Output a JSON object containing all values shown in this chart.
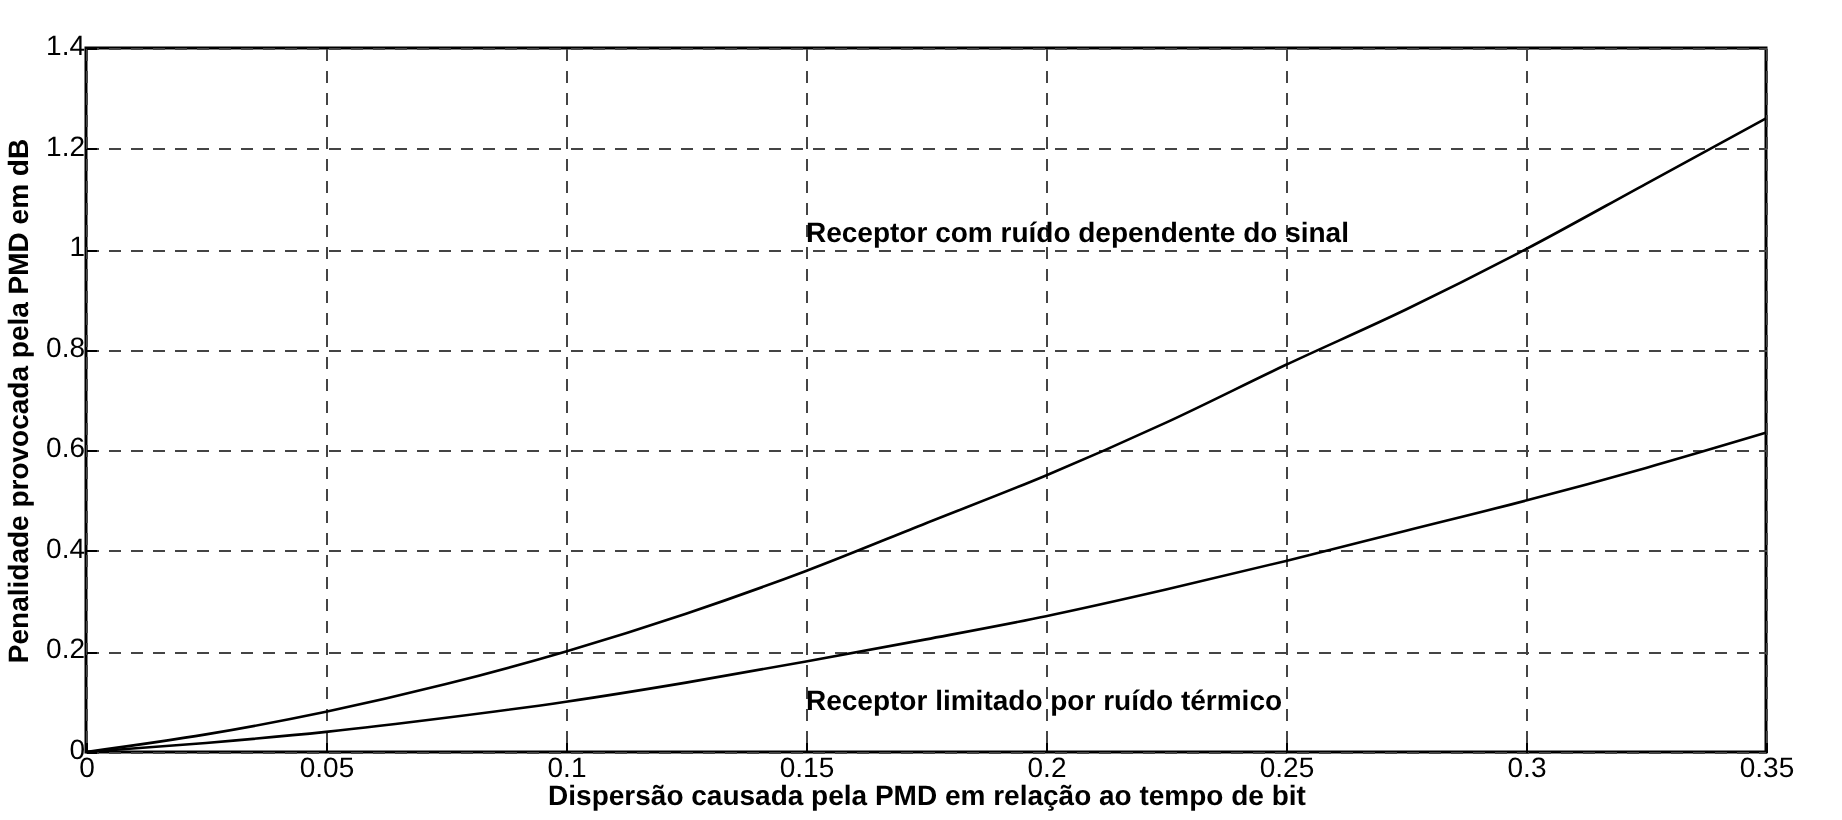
{
  "chart_data": {
    "type": "line",
    "xlabel": "Dispersão causada pela PMD em relação ao tempo de bit",
    "ylabel": "Penalidade provocada pela PMD em dB",
    "x": [
      0,
      0.025,
      0.05,
      0.075,
      0.1,
      0.125,
      0.15,
      0.175,
      0.2,
      0.225,
      0.25,
      0.275,
      0.3,
      0.325,
      0.35
    ],
    "series": [
      {
        "name": "Receptor com ruído dependente do sinal",
        "color": "#000000",
        "values": [
          0,
          0.035,
          0.08,
          0.135,
          0.2,
          0.275,
          0.36,
          0.455,
          0.55,
          0.655,
          0.77,
          0.88,
          1.0,
          1.13,
          1.26
        ]
      },
      {
        "name": "Receptor limitado por ruído térmico",
        "color": "#000000",
        "values": [
          0,
          0.018,
          0.04,
          0.068,
          0.1,
          0.138,
          0.18,
          0.224,
          0.27,
          0.323,
          0.38,
          0.44,
          0.5,
          0.565,
          0.635
        ]
      }
    ],
    "xlim": [
      0,
      0.35
    ],
    "xticks": [
      0,
      0.05,
      0.1,
      0.15,
      0.2,
      0.25,
      0.3,
      0.35
    ],
    "ylim": [
      0,
      1.4
    ],
    "yticks": [
      0,
      0.2,
      0.4,
      0.6,
      0.8,
      1,
      1.2,
      1.4
    ],
    "grid": true,
    "marker": "none",
    "line_style": "solid"
  }
}
